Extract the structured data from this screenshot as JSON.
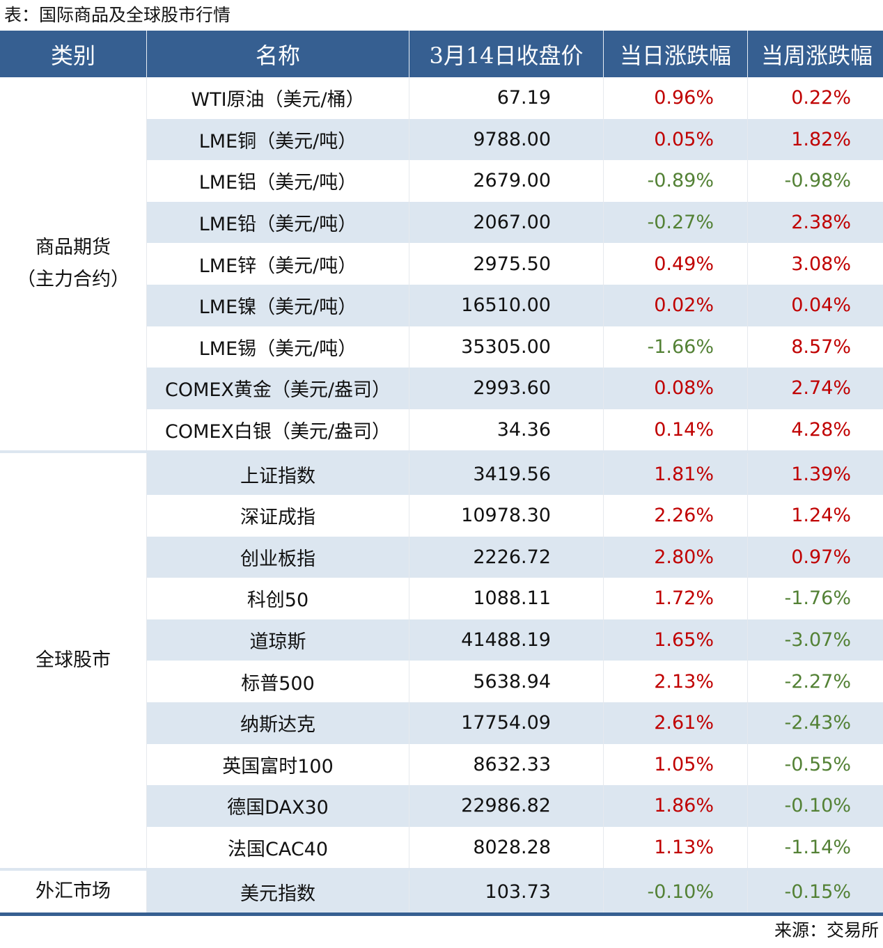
{
  "title": "表：国际商品及全球股市行情",
  "colors": {
    "header_bg": "#365f91",
    "stripe": "#dce6f0",
    "up": "#c00000",
    "down": "#538135"
  },
  "headers": [
    "类别",
    "名称",
    "3月14日收盘价",
    "当日涨跌幅",
    "当周涨跌幅"
  ],
  "groups": [
    {
      "category": "商品期货（主力合约）",
      "category_lines": [
        "商品期货",
        "（主力合约）"
      ],
      "rows": [
        {
          "name": "WTI原油（美元/桶）",
          "close": "67.19",
          "day": "0.96%",
          "week": "0.22%"
        },
        {
          "name": "LME铜（美元/吨）",
          "close": "9788.00",
          "day": "0.05%",
          "week": "1.82%"
        },
        {
          "name": "LME铝（美元/吨）",
          "close": "2679.00",
          "day": "-0.89%",
          "week": "-0.98%"
        },
        {
          "name": "LME铅（美元/吨）",
          "close": "2067.00",
          "day": "-0.27%",
          "week": "2.38%"
        },
        {
          "name": "LME锌（美元/吨）",
          "close": "2975.50",
          "day": "0.49%",
          "week": "3.08%"
        },
        {
          "name": "LME镍（美元/吨）",
          "close": "16510.00",
          "day": "0.02%",
          "week": "0.04%"
        },
        {
          "name": "LME锡（美元/吨）",
          "close": "35305.00",
          "day": "-1.66%",
          "week": "8.57%"
        },
        {
          "name": "COMEX黄金（美元/盎司）",
          "close": "2993.60",
          "day": "0.08%",
          "week": "2.74%"
        },
        {
          "name": "COMEX白银（美元/盎司）",
          "close": "34.36",
          "day": "0.14%",
          "week": "4.28%"
        }
      ]
    },
    {
      "category": "全球股市",
      "category_lines": [
        "全球股市"
      ],
      "rows": [
        {
          "name": "上证指数",
          "close": "3419.56",
          "day": "1.81%",
          "week": "1.39%"
        },
        {
          "name": "深证成指",
          "close": "10978.30",
          "day": "2.26%",
          "week": "1.24%"
        },
        {
          "name": "创业板指",
          "close": "2226.72",
          "day": "2.80%",
          "week": "0.97%"
        },
        {
          "name": "科创50",
          "close": "1088.11",
          "day": "1.72%",
          "week": "-1.76%"
        },
        {
          "name": "道琼斯",
          "close": "41488.19",
          "day": "1.65%",
          "week": "-3.07%"
        },
        {
          "name": "标普500",
          "close": "5638.94",
          "day": "2.13%",
          "week": "-2.27%"
        },
        {
          "name": "纳斯达克",
          "close": "17754.09",
          "day": "2.61%",
          "week": "-2.43%"
        },
        {
          "name": "英国富时100",
          "close": "8632.33",
          "day": "1.05%",
          "week": "-0.55%"
        },
        {
          "name": "德国DAX30",
          "close": "22986.82",
          "day": "1.86%",
          "week": "-0.10%"
        },
        {
          "name": "法国CAC40",
          "close": "8028.28",
          "day": "1.13%",
          "week": "-1.14%"
        }
      ]
    },
    {
      "category": "外汇市场",
      "category_lines": [
        "外汇市场"
      ],
      "rows": [
        {
          "name": "美元指数",
          "close": "103.73",
          "day": "-0.10%",
          "week": "-0.15%"
        }
      ]
    }
  ],
  "source": "来源：交易所"
}
